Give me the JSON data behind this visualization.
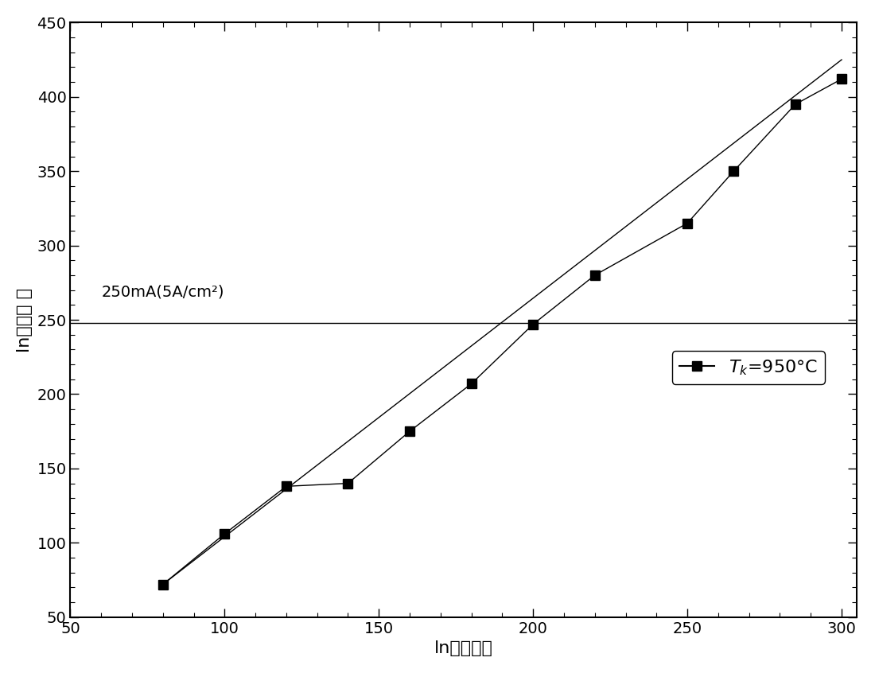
{
  "x_data": [
    80,
    100,
    120,
    140,
    160,
    180,
    200,
    220,
    250,
    265,
    285,
    300
  ],
  "y_data": [
    72,
    106,
    138,
    140,
    175,
    207,
    247,
    280,
    315,
    350,
    395,
    412
  ],
  "line_x": [
    80,
    300
  ],
  "line_y": [
    72,
    425
  ],
  "hline_y": 248,
  "xlim": [
    50,
    305
  ],
  "ylim": [
    50,
    450
  ],
  "xticks": [
    50,
    100,
    150,
    200,
    250,
    300
  ],
  "yticks": [
    50,
    100,
    150,
    200,
    250,
    300,
    350,
    400,
    450
  ],
  "xlabel": "ln（电压）",
  "ylabel": "ln（电流 ）",
  "annotation": "250mA(5A/cm²)",
  "legend_label": "$T_k$=950°C",
  "line_color": "#000000",
  "marker_color": "#000000",
  "background_color": "#ffffff",
  "title_fontsize": 14,
  "label_fontsize": 16,
  "tick_fontsize": 14,
  "annotation_fontsize": 14
}
